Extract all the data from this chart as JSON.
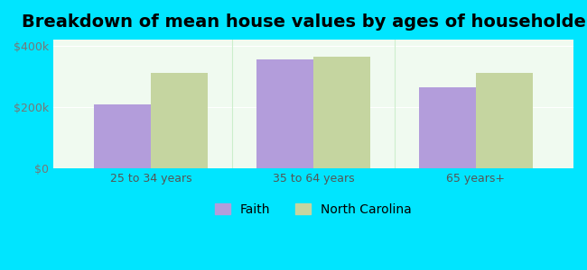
{
  "title": "Breakdown of mean house values by ages of householders",
  "categories": [
    "25 to 34 years",
    "35 to 64 years",
    "65 years+"
  ],
  "faith_values": [
    210000,
    355000,
    265000
  ],
  "nc_values": [
    310000,
    365000,
    310000
  ],
  "faith_color": "#b39ddb",
  "nc_color": "#c5d5a0",
  "background_color": "#00e5ff",
  "plot_bg_color": "#f0faf0",
  "ylim": [
    0,
    420000
  ],
  "yticks": [
    0,
    200000,
    400000
  ],
  "ytick_labels": [
    "$0",
    "$200k",
    "$400k"
  ],
  "legend_faith": "Faith",
  "legend_nc": "North Carolina",
  "bar_width": 0.35,
  "title_fontsize": 14,
  "tick_fontsize": 9,
  "legend_fontsize": 10
}
